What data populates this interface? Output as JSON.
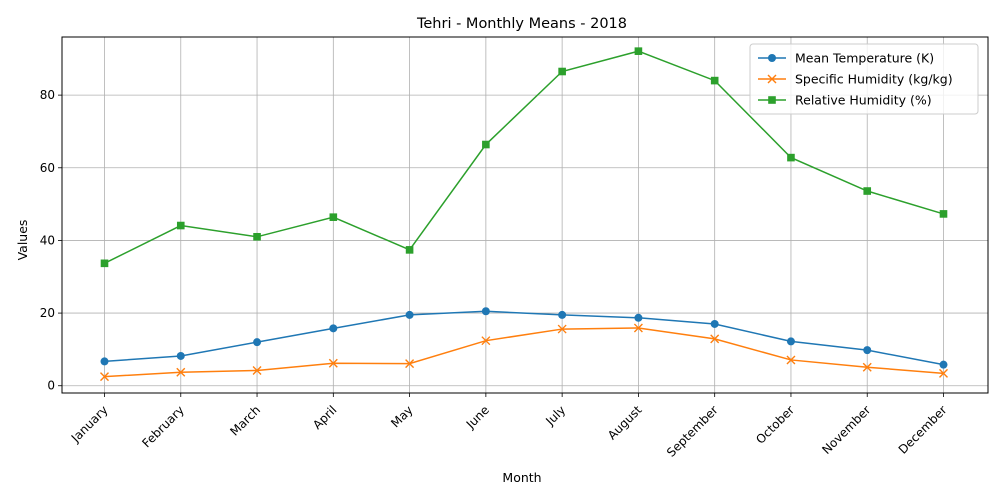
{
  "chart_data": {
    "type": "line",
    "title": "Tehri - Monthly Means - 2018",
    "xlabel": "Month",
    "ylabel": "Values",
    "categories": [
      "January",
      "February",
      "March",
      "April",
      "May",
      "June",
      "July",
      "August",
      "September",
      "October",
      "November",
      "December"
    ],
    "ylim": [
      -2,
      96
    ],
    "yticks": [
      0,
      20,
      40,
      60,
      80
    ],
    "grid": true,
    "legend_position": "top-right",
    "series": [
      {
        "name": "Mean Temperature (K)",
        "color": "#1f77b4",
        "marker": "circle",
        "values": [
          6.7,
          8.2,
          12.0,
          15.8,
          19.5,
          20.5,
          19.5,
          18.7,
          17.0,
          12.2,
          9.8,
          5.8
        ]
      },
      {
        "name": "Specific Humidity (kg/kg)",
        "color": "#ff7f0e",
        "marker": "x",
        "values": [
          2.5,
          3.7,
          4.2,
          6.2,
          6.1,
          12.4,
          15.6,
          15.9,
          12.9,
          7.1,
          5.1,
          3.4
        ]
      },
      {
        "name": "Relative Humidity (%)",
        "color": "#2ca02c",
        "marker": "square",
        "values": [
          33.7,
          44.1,
          41.0,
          46.4,
          37.4,
          66.4,
          86.5,
          92.1,
          84.0,
          62.8,
          53.6,
          47.3
        ]
      }
    ]
  }
}
